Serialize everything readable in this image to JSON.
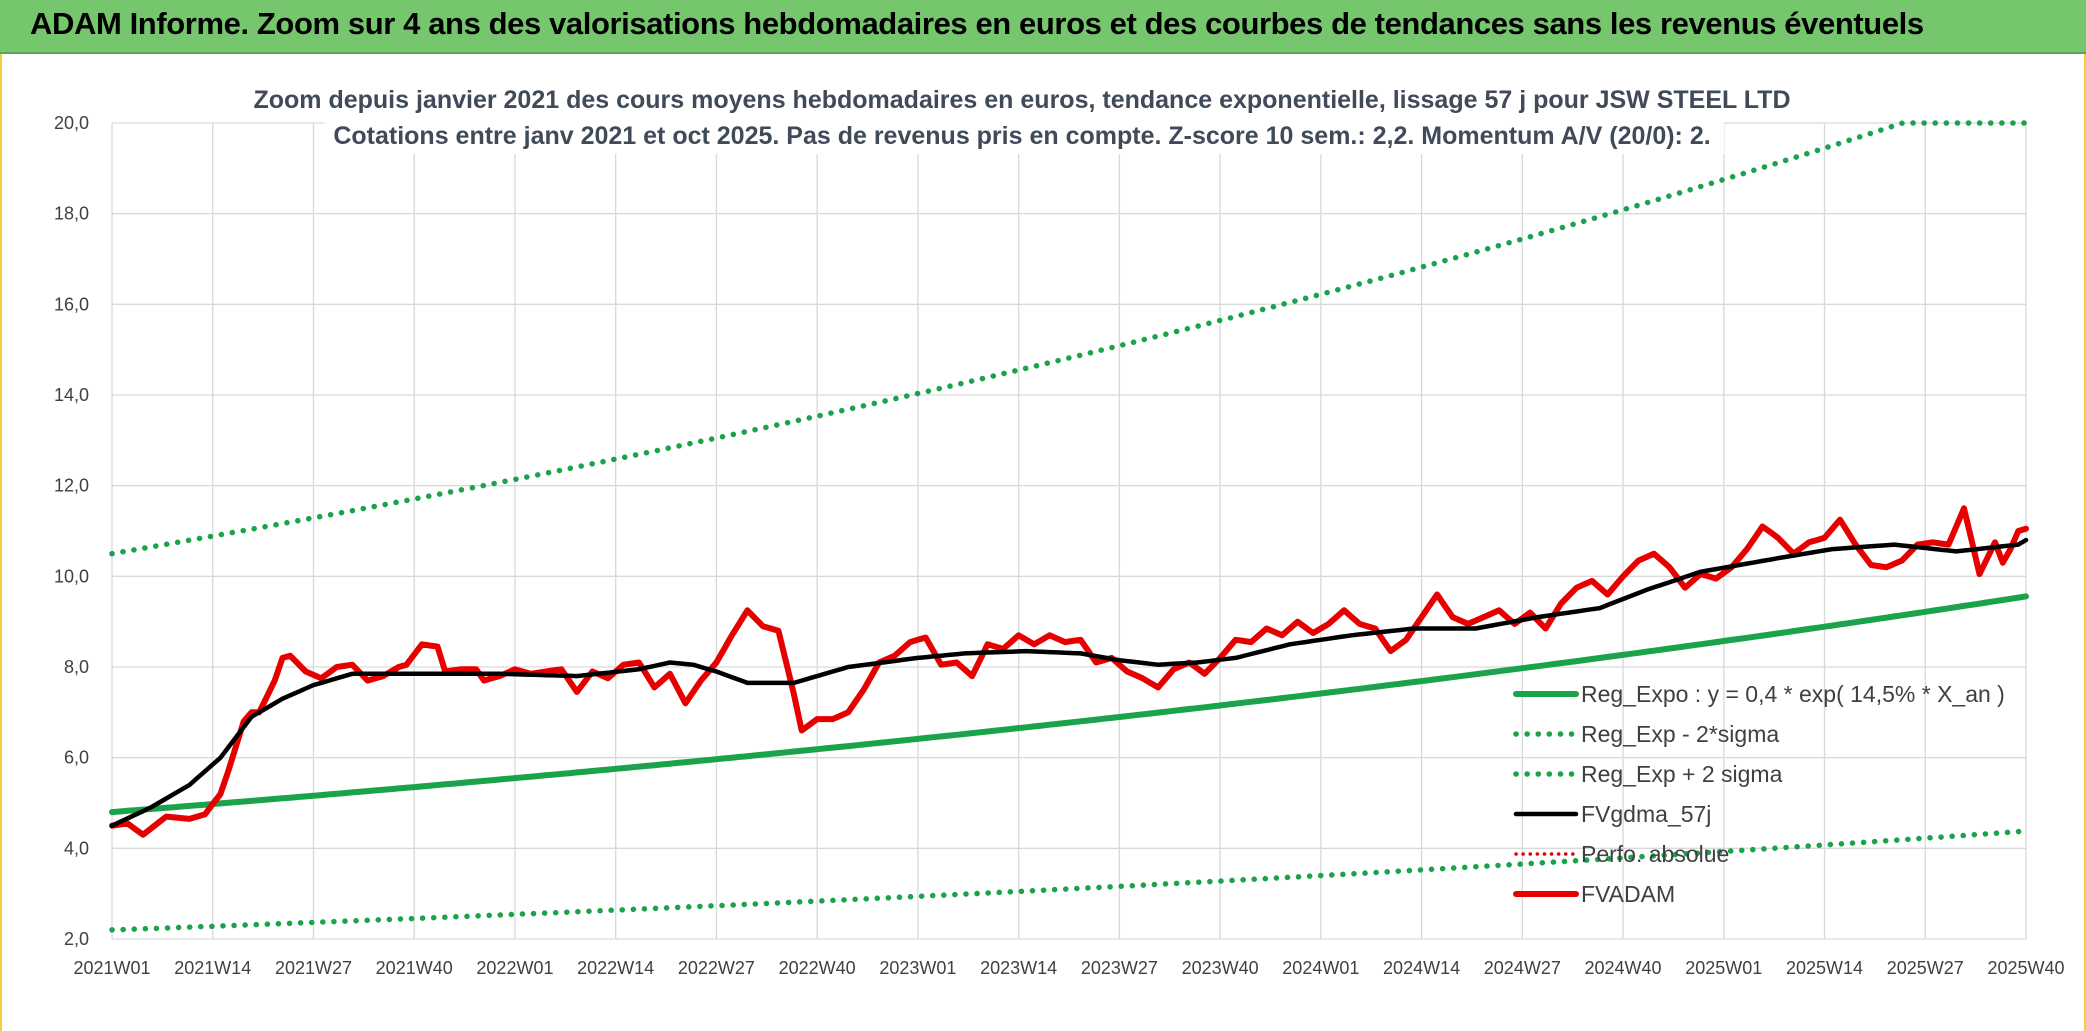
{
  "header": {
    "title": "ADAM Informe. Zoom sur 4 ans des valorisations hebdomadaires en euros et des courbes de tendances sans les revenus éventuels"
  },
  "chart_data": {
    "type": "line",
    "title_line1": "Zoom depuis janvier 2021 des cours moyens hebdomadaires en euros, tendance exponentielle, lissage 57 j pour JSW STEEL LTD",
    "title_line2": "Cotations entre janv 2021 et oct 2025. Pas de revenus pris en compte. Z-score 10 sem.: 2,2. Momentum A/V (20/0): 2.",
    "xlabel": "",
    "ylabel": "",
    "ylim": [
      2,
      20
    ],
    "yticks": [
      "2,0",
      "4,0",
      "6,0",
      "8,0",
      "10,0",
      "12,0",
      "14,0",
      "16,0",
      "18,0",
      "20,0"
    ],
    "x_count": 248,
    "x_tick_labels": [
      "2021W01",
      "2021W14",
      "2021W27",
      "2021W40",
      "2022W01",
      "2022W14",
      "2022W27",
      "2022W40",
      "2023W01",
      "2023W14",
      "2023W27",
      "2023W40",
      "2024W01",
      "2024W14",
      "2024W27",
      "2024W40",
      "2025W01",
      "2025W14",
      "2025W27",
      "2025W40"
    ],
    "grid": true,
    "legend_position": "bottom-right",
    "series": [
      {
        "name": "Reg_Expo : y = 0,4 * exp( 14,5% *  X_an )",
        "color": "#1aa34a",
        "style": "solid",
        "generator": "exp",
        "start": 4.8,
        "rate": 0.145,
        "weeks_per_year": 52,
        "cap": 20
      },
      {
        "name": "Reg_Exp - 2*sigma",
        "color": "#1aa34a",
        "style": "dotted",
        "generator": "exp",
        "start": 2.2,
        "rate": 0.145,
        "weeks_per_year": 52,
        "cap": 20
      },
      {
        "name": "Reg_Exp + 2 sigma",
        "color": "#1aa34a",
        "style": "dotted",
        "generator": "exp",
        "start": 10.5,
        "rate": 0.145,
        "weeks_per_year": 52,
        "cap": 20
      },
      {
        "name": "FVgdma_57j",
        "color": "#000000",
        "style": "solid",
        "keypoints": [
          [
            0,
            4.5
          ],
          [
            5,
            4.9
          ],
          [
            10,
            5.4
          ],
          [
            14,
            6.0
          ],
          [
            18,
            6.9
          ],
          [
            22,
            7.3
          ],
          [
            26,
            7.6
          ],
          [
            31,
            7.85
          ],
          [
            40,
            7.85
          ],
          [
            50,
            7.85
          ],
          [
            60,
            7.8
          ],
          [
            68,
            7.95
          ],
          [
            72,
            8.1
          ],
          [
            75,
            8.05
          ],
          [
            78,
            7.9
          ],
          [
            82,
            7.65
          ],
          [
            88,
            7.65
          ],
          [
            95,
            8.0
          ],
          [
            104,
            8.2
          ],
          [
            110,
            8.3
          ],
          [
            118,
            8.35
          ],
          [
            125,
            8.3
          ],
          [
            130,
            8.15
          ],
          [
            135,
            8.05
          ],
          [
            140,
            8.1
          ],
          [
            145,
            8.2
          ],
          [
            152,
            8.5
          ],
          [
            160,
            8.7
          ],
          [
            168,
            8.85
          ],
          [
            176,
            8.85
          ],
          [
            184,
            9.1
          ],
          [
            192,
            9.3
          ],
          [
            198,
            9.7
          ],
          [
            205,
            10.1
          ],
          [
            215,
            10.4
          ],
          [
            222,
            10.6
          ],
          [
            230,
            10.7
          ],
          [
            238,
            10.55
          ],
          [
            246,
            10.7
          ],
          [
            247,
            10.8
          ]
        ]
      },
      {
        "name": "Perfo. absolue",
        "color": "#e30000",
        "style": "dotted",
        "keypoints": []
      },
      {
        "name": "FVADAM",
        "color": "#e60000",
        "style": "solid",
        "keypoints": [
          [
            0,
            4.5
          ],
          [
            2,
            4.55
          ],
          [
            4,
            4.3
          ],
          [
            7,
            4.7
          ],
          [
            10,
            4.65
          ],
          [
            12,
            4.75
          ],
          [
            14,
            5.2
          ],
          [
            15,
            5.7
          ],
          [
            17,
            6.8
          ],
          [
            18,
            7.0
          ],
          [
            19,
            7.0
          ],
          [
            21,
            7.7
          ],
          [
            22,
            8.2
          ],
          [
            23,
            8.25
          ],
          [
            25,
            7.9
          ],
          [
            27,
            7.75
          ],
          [
            29,
            8.0
          ],
          [
            31,
            8.05
          ],
          [
            33,
            7.7
          ],
          [
            35,
            7.8
          ],
          [
            37,
            8.0
          ],
          [
            38,
            8.05
          ],
          [
            40,
            8.5
          ],
          [
            42,
            8.45
          ],
          [
            43,
            7.9
          ],
          [
            45,
            7.95
          ],
          [
            47,
            7.95
          ],
          [
            48,
            7.7
          ],
          [
            50,
            7.8
          ],
          [
            52,
            7.95
          ],
          [
            54,
            7.85
          ],
          [
            56,
            7.9
          ],
          [
            58,
            7.95
          ],
          [
            60,
            7.45
          ],
          [
            62,
            7.9
          ],
          [
            64,
            7.75
          ],
          [
            66,
            8.05
          ],
          [
            68,
            8.1
          ],
          [
            70,
            7.55
          ],
          [
            72,
            7.85
          ],
          [
            74,
            7.2
          ],
          [
            76,
            7.7
          ],
          [
            78,
            8.1
          ],
          [
            80,
            8.7
          ],
          [
            82,
            9.25
          ],
          [
            84,
            8.9
          ],
          [
            86,
            8.8
          ],
          [
            88,
            7.4
          ],
          [
            89,
            6.6
          ],
          [
            91,
            6.85
          ],
          [
            93,
            6.85
          ],
          [
            95,
            7.0
          ],
          [
            97,
            7.5
          ],
          [
            99,
            8.1
          ],
          [
            101,
            8.25
          ],
          [
            103,
            8.55
          ],
          [
            105,
            8.65
          ],
          [
            107,
            8.05
          ],
          [
            109,
            8.1
          ],
          [
            111,
            7.8
          ],
          [
            113,
            8.5
          ],
          [
            115,
            8.4
          ],
          [
            117,
            8.7
          ],
          [
            119,
            8.5
          ],
          [
            121,
            8.7
          ],
          [
            123,
            8.55
          ],
          [
            125,
            8.6
          ],
          [
            127,
            8.1
          ],
          [
            129,
            8.2
          ],
          [
            131,
            7.9
          ],
          [
            133,
            7.75
          ],
          [
            135,
            7.55
          ],
          [
            137,
            7.95
          ],
          [
            139,
            8.1
          ],
          [
            141,
            7.85
          ],
          [
            143,
            8.2
          ],
          [
            145,
            8.6
          ],
          [
            147,
            8.55
          ],
          [
            149,
            8.85
          ],
          [
            151,
            8.7
          ],
          [
            153,
            9.0
          ],
          [
            155,
            8.75
          ],
          [
            157,
            8.95
          ],
          [
            159,
            9.25
          ],
          [
            161,
            8.95
          ],
          [
            163,
            8.85
          ],
          [
            165,
            8.35
          ],
          [
            167,
            8.6
          ],
          [
            169,
            9.1
          ],
          [
            171,
            9.6
          ],
          [
            173,
            9.1
          ],
          [
            175,
            8.95
          ],
          [
            177,
            9.1
          ],
          [
            179,
            9.25
          ],
          [
            181,
            8.95
          ],
          [
            183,
            9.2
          ],
          [
            185,
            8.85
          ],
          [
            187,
            9.4
          ],
          [
            189,
            9.75
          ],
          [
            191,
            9.9
          ],
          [
            193,
            9.6
          ],
          [
            195,
            10.0
          ],
          [
            197,
            10.35
          ],
          [
            199,
            10.5
          ],
          [
            201,
            10.2
          ],
          [
            203,
            9.75
          ],
          [
            205,
            10.05
          ],
          [
            207,
            9.95
          ],
          [
            209,
            10.2
          ],
          [
            211,
            10.6
          ],
          [
            213,
            11.1
          ],
          [
            215,
            10.85
          ],
          [
            217,
            10.5
          ],
          [
            219,
            10.75
          ],
          [
            221,
            10.85
          ],
          [
            223,
            11.25
          ],
          [
            225,
            10.7
          ],
          [
            227,
            10.25
          ],
          [
            229,
            10.2
          ],
          [
            231,
            10.35
          ],
          [
            233,
            10.7
          ],
          [
            235,
            10.75
          ],
          [
            237,
            10.7
          ],
          [
            239,
            11.5
          ],
          [
            241,
            10.05
          ],
          [
            243,
            10.75
          ],
          [
            244,
            10.3
          ],
          [
            245,
            10.6
          ],
          [
            246,
            11.0
          ],
          [
            247,
            11.05
          ]
        ]
      }
    ]
  }
}
